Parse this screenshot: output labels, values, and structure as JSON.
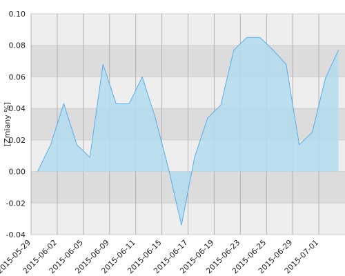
{
  "chart_data": {
    "type": "area",
    "y_label": "[Zmiany %]",
    "categories": [
      "2015-05-29",
      null,
      "2015-06-02",
      null,
      "2015-06-05",
      null,
      "2015-06-09",
      null,
      "2015-06-11",
      null,
      "2015-06-15",
      null,
      "2015-06-17",
      null,
      "2015-06-19",
      null,
      "2015-06-23",
      null,
      "2015-06-25",
      null,
      "2015-06-29",
      null,
      "2015-07-01",
      null
    ],
    "series": [
      {
        "color": "#5aabea",
        "fill": "#b3dcef",
        "values": [
          0.0,
          0.017,
          0.043,
          0.017,
          0.009,
          0.068,
          0.043,
          0.043,
          0.06,
          0.034,
          0.002,
          -0.034,
          0.009,
          0.034,
          0.042,
          0.077,
          0.085,
          0.085,
          0.077,
          0.068,
          0.017,
          0.025,
          0.059,
          0.077
        ]
      }
    ],
    "ylim": [
      -0.04,
      0.1
    ],
    "yticks": [
      {
        "value": 0.1,
        "label": "0.10"
      },
      {
        "value": 0.08,
        "label": "0.08"
      },
      {
        "value": 0.06,
        "label": "0.06"
      },
      {
        "value": 0.04,
        "label": "0.04"
      },
      {
        "value": 0.02,
        "label": "0.02"
      },
      {
        "value": 0,
        "label": "0.00"
      },
      {
        "value": -0.02,
        "label": "-0.02"
      },
      {
        "value": -0.04,
        "label": "-0.04"
      }
    ],
    "grid": true
  }
}
